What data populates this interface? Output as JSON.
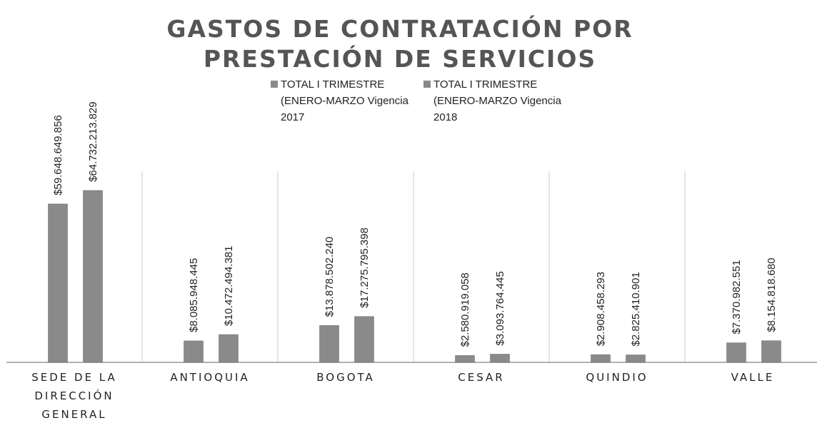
{
  "chart_data": {
    "type": "bar",
    "title": "GASTOS DE CONTRATACIÓN POR PRESTACIÓN DE SERVICIOS",
    "categories": [
      "SEDE DE LA DIRECCIÓN GENERAL",
      "ANTIOQUIA",
      "BOGOTA",
      "CESAR",
      "QUINDIO",
      "VALLE"
    ],
    "series": [
      {
        "name": "TOTAL I TRIMESTRE (ENERO-MARZO Vigencia 2017",
        "color": "#8a8a8a",
        "values": [
          59648649856,
          8085948445,
          13878502240,
          2580919058,
          2908458293,
          7370982551
        ],
        "value_labels": [
          "$59.648.649.856",
          "$8.085.948.445",
          "$13.878.502.240",
          "$2.580.919.058",
          "$2.908.458.293",
          "$7.370.982.551"
        ]
      },
      {
        "name": "TOTAL I TRIMESTRE (ENERO-MARZO Vigencia 2018",
        "color": "#8a8a8a",
        "values": [
          64732213829,
          10472494381,
          17275795398,
          3093764445,
          2825410901,
          8154818680
        ],
        "value_labels": [
          "$64.732.213.829",
          "$10.472.494.381",
          "$17.275.795.398",
          "$3.093.764.445",
          "$2.825.410.901",
          "$8.154.818.680"
        ]
      }
    ]
  }
}
